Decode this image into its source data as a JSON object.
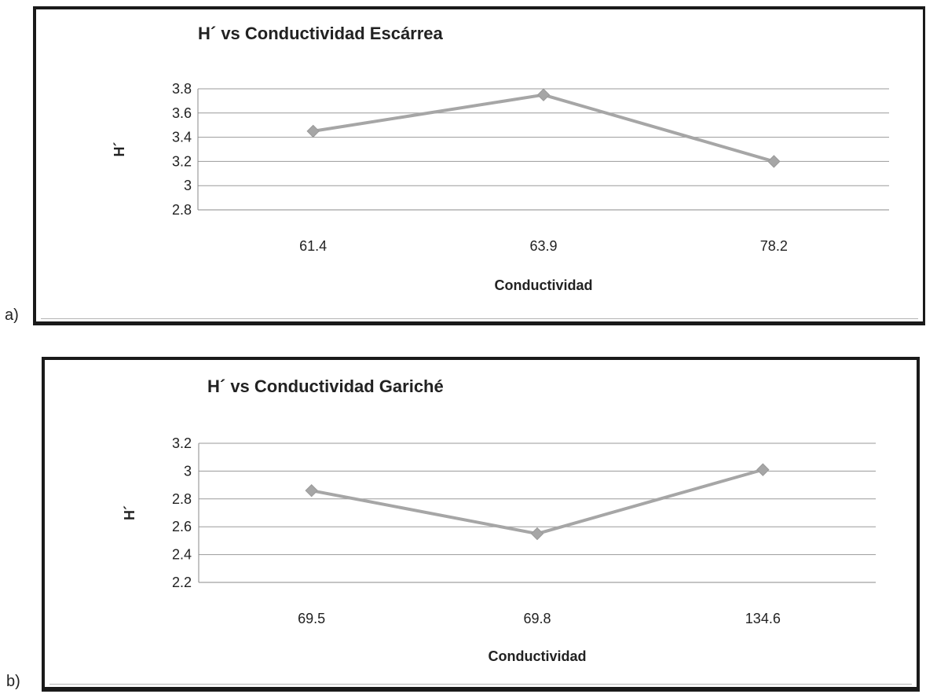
{
  "panels": [
    {
      "label": "a)"
    },
    {
      "label": "b)"
    }
  ],
  "chart_data": [
    {
      "type": "line",
      "title": "H´ vs Conductividad Escárrea",
      "xlabel": "Conductividad",
      "ylabel": "H´",
      "categories": [
        "61.4",
        "63.9",
        "78.2"
      ],
      "values": [
        3.45,
        3.75,
        3.2
      ],
      "ylim": [
        2.8,
        3.8
      ],
      "yticks": [
        2.8,
        3,
        3.2,
        3.4,
        3.6,
        3.8
      ],
      "ytick_labels": [
        "2.8",
        "3",
        "3.2",
        "3.4",
        "3.6",
        "3.8"
      ],
      "grid": true,
      "legend": "none",
      "colors": {
        "series": "#a6a6a6",
        "grid": "#9a9a9a"
      }
    },
    {
      "type": "line",
      "title": "H´ vs Conductividad Gariché",
      "xlabel": "Conductividad",
      "ylabel": "H´",
      "categories": [
        "69.5",
        "69.8",
        "134.6"
      ],
      "values": [
        2.86,
        2.55,
        3.01
      ],
      "ylim": [
        2.2,
        3.2
      ],
      "yticks": [
        2.2,
        2.4,
        2.6,
        2.8,
        3,
        3.2
      ],
      "ytick_labels": [
        "2.2",
        "2.4",
        "2.6",
        "2.8",
        "3",
        "3.2"
      ],
      "grid": true,
      "legend": "none",
      "colors": {
        "series": "#a6a6a6",
        "grid": "#9a9a9a"
      }
    }
  ]
}
